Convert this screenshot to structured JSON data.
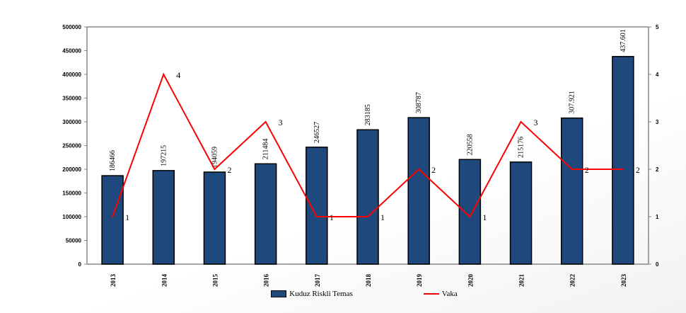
{
  "chart_data": {
    "type": "bar",
    "categories": [
      "2013",
      "2014",
      "2015",
      "2016",
      "2017",
      "2018",
      "2019",
      "2020",
      "2021",
      "2022",
      "2023"
    ],
    "series": [
      {
        "name": "Kuduz Riskli Temas",
        "type": "bar",
        "axis": "left",
        "color": "#1f497d",
        "values": [
          186466,
          197215,
          194059,
          211484,
          246527,
          283185,
          308787,
          220558,
          215176,
          307921,
          437601
        ],
        "labels": [
          "186466",
          "197215",
          "194059",
          "211484",
          "246527",
          "283185",
          "308787",
          "220558",
          "215176",
          "307.921",
          "437.601"
        ]
      },
      {
        "name": "Vaka",
        "type": "line",
        "axis": "right",
        "color": "#ff0000",
        "values": [
          1,
          4,
          2,
          3,
          1,
          1,
          2,
          1,
          3,
          2,
          2
        ]
      }
    ],
    "y_left": {
      "min": 0,
      "max": 500000,
      "ticks": [
        "0",
        "50000",
        "100000",
        "150000",
        "200000",
        "250000",
        "300000",
        "350000",
        "400000",
        "450000",
        "500000"
      ]
    },
    "y_right": {
      "min": 0,
      "max": 5,
      "ticks": [
        "0",
        "1",
        "2",
        "3",
        "4",
        "5"
      ]
    },
    "legend": "bottom"
  }
}
